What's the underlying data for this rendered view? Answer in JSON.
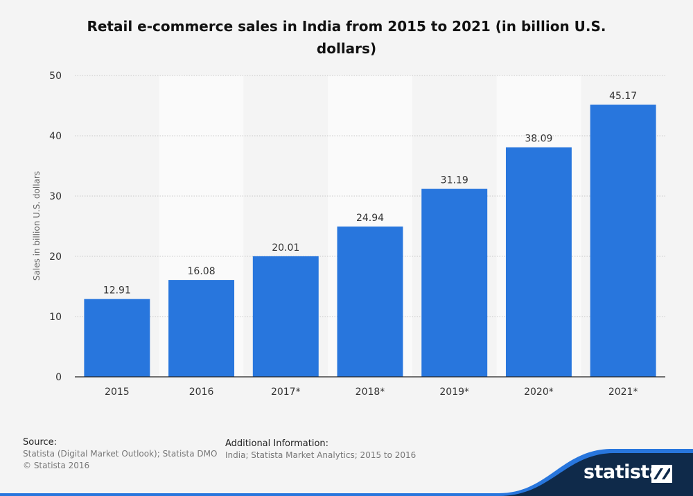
{
  "chart_data": {
    "type": "bar",
    "title": "Retail e-commerce sales in India from 2015 to 2021 (in billion U.S. dollars)",
    "ylabel": "Sales in billion U.S. dollars",
    "xlabel": "",
    "categories": [
      "2015",
      "2016",
      "2017*",
      "2018*",
      "2019*",
      "2020*",
      "2021*"
    ],
    "values": [
      12.91,
      16.08,
      20.01,
      24.94,
      31.19,
      38.09,
      45.17
    ],
    "value_labels": [
      "12.91",
      "16.08",
      "20.01",
      "24.94",
      "31.19",
      "38.09",
      "45.17"
    ],
    "ylim": [
      0,
      50
    ],
    "yticks": [
      0,
      10,
      20,
      30,
      40,
      50
    ],
    "ytick_labels": [
      "0",
      "10",
      "20",
      "30",
      "40",
      "50"
    ],
    "grid": true,
    "bar_color": "#2876dd"
  },
  "footer": {
    "source_heading": "Source:",
    "source_line1": "Statista (Digital Market Outlook); Statista DMO",
    "source_line2": "© Statista 2016",
    "additional_heading": "Additional Information:",
    "additional_text": "India; Statista Market Analytics; 2015 to 2016"
  },
  "branding": {
    "logo_text": "statista",
    "logo_icon": "statista-logo-icon",
    "band_color": "#0f2a4a",
    "accent_color": "#2876dd"
  }
}
